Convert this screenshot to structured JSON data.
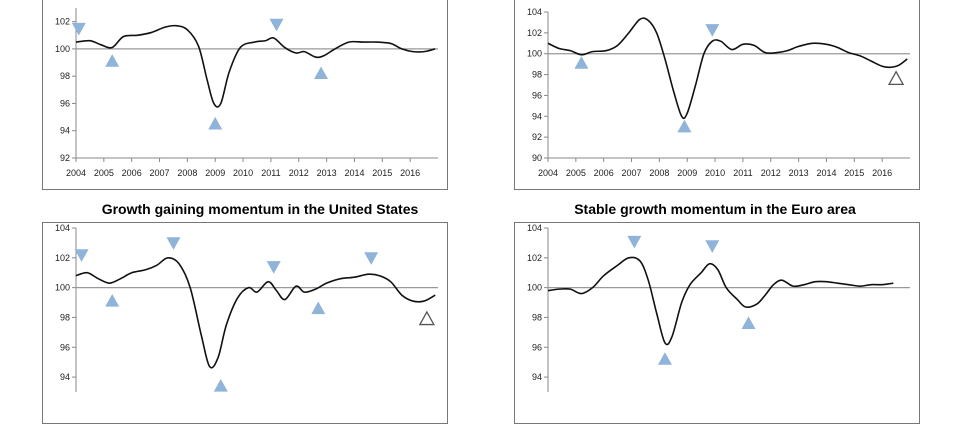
{
  "chart_data": [
    {
      "type": "line",
      "title": "",
      "xlabel": "",
      "ylabel": "",
      "ylim": [
        92,
        103
      ],
      "yticks": [
        92,
        94,
        96,
        98,
        100,
        102
      ],
      "xticks": [
        "2004",
        "2005",
        "2006",
        "2007",
        "2008",
        "2009",
        "2010",
        "2011",
        "2012",
        "2013",
        "2014",
        "2015",
        "2016"
      ],
      "reference_line": 100,
      "grid": false,
      "series_points": [
        [
          2004.0,
          100.5
        ],
        [
          2004.5,
          100.6
        ],
        [
          2004.9,
          100.3
        ],
        [
          2005.3,
          100.1
        ],
        [
          2005.7,
          100.9
        ],
        [
          2006.2,
          101.0
        ],
        [
          2006.7,
          101.2
        ],
        [
          2007.2,
          101.6
        ],
        [
          2007.6,
          101.7
        ],
        [
          2008.0,
          101.4
        ],
        [
          2008.4,
          100.2
        ],
        [
          2008.7,
          97.8
        ],
        [
          2008.95,
          96.0
        ],
        [
          2009.2,
          96.0
        ],
        [
          2009.5,
          98.3
        ],
        [
          2009.9,
          100.1
        ],
        [
          2010.4,
          100.5
        ],
        [
          2010.8,
          100.6
        ],
        [
          2011.1,
          100.8
        ],
        [
          2011.5,
          100.1
        ],
        [
          2011.9,
          99.7
        ],
        [
          2012.2,
          99.8
        ],
        [
          2012.6,
          99.4
        ],
        [
          2012.9,
          99.5
        ],
        [
          2013.3,
          100.0
        ],
        [
          2013.8,
          100.5
        ],
        [
          2014.3,
          100.5
        ],
        [
          2014.8,
          100.5
        ],
        [
          2015.3,
          100.4
        ],
        [
          2015.7,
          100.0
        ],
        [
          2016.1,
          99.8
        ],
        [
          2016.5,
          99.8
        ],
        [
          2016.9,
          100.0
        ]
      ],
      "markers": [
        {
          "x": 2004.1,
          "y": 101.5,
          "dir": "down",
          "color": "#8fb3d9",
          "filled": true
        },
        {
          "x": 2005.3,
          "y": 99.1,
          "dir": "up",
          "color": "#8fb3d9",
          "filled": true
        },
        {
          "x": 2009.0,
          "y": 94.5,
          "dir": "up",
          "color": "#8fb3d9",
          "filled": true
        },
        {
          "x": 2011.2,
          "y": 101.8,
          "dir": "down",
          "color": "#8fb3d9",
          "filled": true
        },
        {
          "x": 2012.8,
          "y": 98.2,
          "dir": "up",
          "color": "#8fb3d9",
          "filled": true
        }
      ]
    },
    {
      "type": "line",
      "title": "",
      "xlabel": "",
      "ylabel": "",
      "ylim": [
        90,
        104
      ],
      "yticks": [
        90,
        92,
        94,
        96,
        98,
        100,
        102,
        104
      ],
      "xticks": [
        "2004",
        "2005",
        "2006",
        "2007",
        "2008",
        "2009",
        "2010",
        "2011",
        "2012",
        "2013",
        "2014",
        "2015",
        "2016"
      ],
      "reference_line": 100,
      "grid": false,
      "series_points": [
        [
          2004.0,
          101.0
        ],
        [
          2004.4,
          100.5
        ],
        [
          2004.8,
          100.3
        ],
        [
          2005.2,
          99.9
        ],
        [
          2005.6,
          100.2
        ],
        [
          2006.1,
          100.3
        ],
        [
          2006.5,
          100.8
        ],
        [
          2006.9,
          102.0
        ],
        [
          2007.3,
          103.3
        ],
        [
          2007.6,
          103.2
        ],
        [
          2007.9,
          102.0
        ],
        [
          2008.2,
          99.5
        ],
        [
          2008.5,
          96.5
        ],
        [
          2008.8,
          94.0
        ],
        [
          2009.0,
          94.3
        ],
        [
          2009.3,
          97.0
        ],
        [
          2009.6,
          100.0
        ],
        [
          2009.9,
          101.2
        ],
        [
          2010.2,
          101.2
        ],
        [
          2010.6,
          100.4
        ],
        [
          2011.0,
          100.9
        ],
        [
          2011.4,
          100.8
        ],
        [
          2011.8,
          100.1
        ],
        [
          2012.2,
          100.1
        ],
        [
          2012.6,
          100.3
        ],
        [
          2013.0,
          100.7
        ],
        [
          2013.5,
          101.0
        ],
        [
          2014.0,
          100.9
        ],
        [
          2014.4,
          100.6
        ],
        [
          2014.8,
          100.1
        ],
        [
          2015.2,
          99.8
        ],
        [
          2015.6,
          99.3
        ],
        [
          2016.0,
          98.8
        ],
        [
          2016.3,
          98.7
        ],
        [
          2016.6,
          98.9
        ],
        [
          2016.9,
          99.5
        ]
      ],
      "markers": [
        {
          "x": 2005.2,
          "y": 99.1,
          "dir": "up",
          "color": "#8fb3d9",
          "filled": true
        },
        {
          "x": 2008.9,
          "y": 93.0,
          "dir": "up",
          "color": "#8fb3d9",
          "filled": true
        },
        {
          "x": 2009.9,
          "y": 102.3,
          "dir": "down",
          "color": "#8fb3d9",
          "filled": true
        },
        {
          "x": 2016.5,
          "y": 97.6,
          "dir": "up",
          "color": "#555555",
          "filled": false
        }
      ]
    },
    {
      "type": "line",
      "title": "Growth gaining momentum in the United States",
      "xlabel": "",
      "ylabel": "",
      "ylim": [
        93,
        104
      ],
      "yticks": [
        94,
        96,
        98,
        100,
        102,
        104
      ],
      "xticks": [],
      "reference_line": 100,
      "grid": false,
      "series_points": [
        [
          2004.0,
          100.8
        ],
        [
          2004.4,
          101.0
        ],
        [
          2004.8,
          100.6
        ],
        [
          2005.2,
          100.3
        ],
        [
          2005.6,
          100.6
        ],
        [
          2006.0,
          101.0
        ],
        [
          2006.5,
          101.2
        ],
        [
          2006.9,
          101.5
        ],
        [
          2007.3,
          102.0
        ],
        [
          2007.7,
          101.6
        ],
        [
          2008.1,
          100.0
        ],
        [
          2008.5,
          96.8
        ],
        [
          2008.8,
          94.7
        ],
        [
          2009.1,
          95.3
        ],
        [
          2009.4,
          97.5
        ],
        [
          2009.8,
          99.3
        ],
        [
          2010.2,
          100.0
        ],
        [
          2010.5,
          99.7
        ],
        [
          2010.9,
          100.4
        ],
        [
          2011.2,
          99.8
        ],
        [
          2011.5,
          99.2
        ],
        [
          2011.9,
          100.1
        ],
        [
          2012.2,
          99.7
        ],
        [
          2012.6,
          99.9
        ],
        [
          2013.0,
          100.3
        ],
        [
          2013.5,
          100.6
        ],
        [
          2014.0,
          100.7
        ],
        [
          2014.5,
          100.9
        ],
        [
          2014.9,
          100.8
        ],
        [
          2015.3,
          100.4
        ],
        [
          2015.7,
          99.5
        ],
        [
          2016.1,
          99.1
        ],
        [
          2016.5,
          99.1
        ],
        [
          2016.9,
          99.5
        ]
      ],
      "markers": [
        {
          "x": 2004.2,
          "y": 102.2,
          "dir": "down",
          "color": "#8fb3d9",
          "filled": true
        },
        {
          "x": 2005.3,
          "y": 99.1,
          "dir": "up",
          "color": "#8fb3d9",
          "filled": true
        },
        {
          "x": 2007.5,
          "y": 103.0,
          "dir": "down",
          "color": "#8fb3d9",
          "filled": true
        },
        {
          "x": 2009.2,
          "y": 93.4,
          "dir": "up",
          "color": "#8fb3d9",
          "filled": true
        },
        {
          "x": 2011.1,
          "y": 101.4,
          "dir": "down",
          "color": "#8fb3d9",
          "filled": true
        },
        {
          "x": 2012.7,
          "y": 98.6,
          "dir": "up",
          "color": "#8fb3d9",
          "filled": true
        },
        {
          "x": 2014.6,
          "y": 102.0,
          "dir": "down",
          "color": "#8fb3d9",
          "filled": true
        },
        {
          "x": 2016.6,
          "y": 97.9,
          "dir": "up",
          "color": "#555555",
          "filled": false
        }
      ]
    },
    {
      "type": "line",
      "title": "Stable growth momentum in the Euro area",
      "xlabel": "",
      "ylabel": "",
      "ylim": [
        93,
        104
      ],
      "yticks": [
        94,
        96,
        98,
        100,
        102,
        104
      ],
      "xticks": [],
      "reference_line": 100,
      "grid": false,
      "series_points": [
        [
          2004.0,
          99.8
        ],
        [
          2004.4,
          99.9
        ],
        [
          2004.8,
          99.9
        ],
        [
          2005.2,
          99.6
        ],
        [
          2005.6,
          100.0
        ],
        [
          2006.0,
          100.8
        ],
        [
          2006.5,
          101.5
        ],
        [
          2006.9,
          102.0
        ],
        [
          2007.3,
          101.8
        ],
        [
          2007.6,
          100.5
        ],
        [
          2007.9,
          98.3
        ],
        [
          2008.2,
          96.3
        ],
        [
          2008.45,
          96.7
        ],
        [
          2008.8,
          99.0
        ],
        [
          2009.1,
          100.2
        ],
        [
          2009.5,
          101.0
        ],
        [
          2009.8,
          101.6
        ],
        [
          2010.1,
          101.2
        ],
        [
          2010.4,
          100.0
        ],
        [
          2010.8,
          99.2
        ],
        [
          2011.1,
          98.7
        ],
        [
          2011.5,
          98.9
        ],
        [
          2011.8,
          99.5
        ],
        [
          2012.1,
          100.2
        ],
        [
          2012.4,
          100.5
        ],
        [
          2012.8,
          100.1
        ],
        [
          2013.2,
          100.2
        ],
        [
          2013.6,
          100.4
        ],
        [
          2014.0,
          100.4
        ],
        [
          2014.4,
          100.3
        ],
        [
          2014.8,
          100.2
        ],
        [
          2015.2,
          100.1
        ],
        [
          2015.6,
          100.2
        ],
        [
          2016.0,
          100.2
        ],
        [
          2016.4,
          100.3
        ]
      ],
      "markers": [
        {
          "x": 2007.1,
          "y": 103.1,
          "dir": "down",
          "color": "#8fb3d9",
          "filled": true
        },
        {
          "x": 2008.2,
          "y": 95.2,
          "dir": "up",
          "color": "#8fb3d9",
          "filled": true
        },
        {
          "x": 2009.9,
          "y": 102.8,
          "dir": "down",
          "color": "#8fb3d9",
          "filled": true
        },
        {
          "x": 2011.2,
          "y": 97.6,
          "dir": "up",
          "color": "#8fb3d9",
          "filled": true
        }
      ]
    }
  ]
}
